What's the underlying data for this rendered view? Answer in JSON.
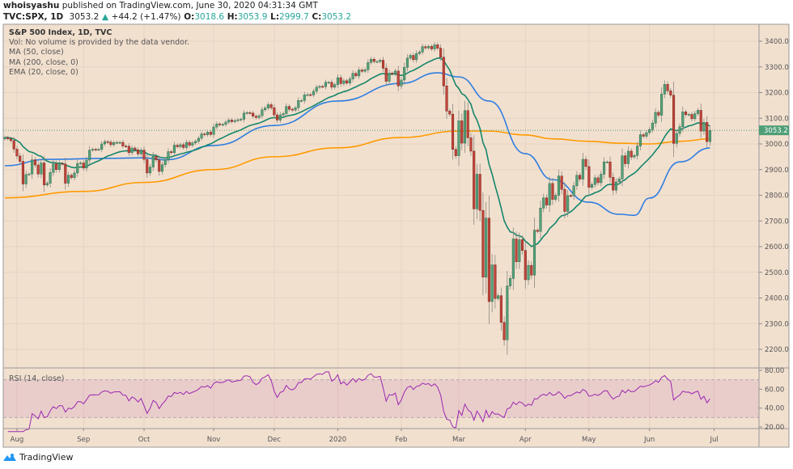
{
  "header": {
    "author": "whoisyashu",
    "published": "published on TradingView.com, June 30, 2020 04:31:34 GMT",
    "symbol": "TVC:SPX, 1D",
    "last": "3053.2",
    "change_icon": "triangle-up-icon",
    "change": "+44.2 (+1.47%)",
    "o_label": "O:",
    "o": "3018.6",
    "h_label": "H:",
    "h": "3053.9",
    "l_label": "L:",
    "l": "2999.7",
    "c_label": "C:",
    "c": "3053.2"
  },
  "legend": {
    "title": "S&P 500 Index, 1D, TVC",
    "vol": "Vol: No volume is provided by the data vendor.",
    "ma50": "MA (50, close)",
    "ma200": "MA (200, close, 0)",
    "ema20": "EMA (20, close, 0)"
  },
  "rsi_label": "RSI (14, close)",
  "brand": "TradingView",
  "colors": {
    "background": "#f2e0cf",
    "up": "#55a07a",
    "down": "#c0453a",
    "ema20": "#14866b",
    "ma50": "#2f7ee0",
    "ma200": "#ff9a00",
    "rsi": "#9b27b0",
    "last_price": "#4f9e76"
  },
  "chart_data": {
    "type": "candlestick",
    "last_price_label": "3053.2",
    "price_ticks": [
      "3400.0",
      "3300.0",
      "3200.0",
      "3100.0",
      "3000.0",
      "2900.0",
      "2800.0",
      "2700.0",
      "2600.0",
      "2500.0",
      "2400.0",
      "2300.0",
      "2200.0"
    ],
    "price_range": [
      2155,
      3465
    ],
    "rsi_ticks": [
      "80.00",
      "60.00",
      "40.00",
      "20.00"
    ],
    "rsi_band": [
      30,
      70
    ],
    "time_ticks": [
      {
        "label": "Aug",
        "date": "2019-08-01"
      },
      {
        "label": "Sep",
        "date": "2019-09-03"
      },
      {
        "label": "Oct",
        "date": "2019-10-01"
      },
      {
        "label": "Nov",
        "date": "2019-11-01"
      },
      {
        "label": "Dec",
        "date": "2019-12-02"
      },
      {
        "label": "2020",
        "date": "2020-01-02"
      },
      {
        "label": "Feb",
        "date": "2020-02-03"
      },
      {
        "label": "Mar",
        "date": "2020-03-02"
      },
      {
        "label": "Apr",
        "date": "2020-04-01"
      },
      {
        "label": "May",
        "date": "2020-05-01"
      },
      {
        "label": "Jun",
        "date": "2020-06-01"
      },
      {
        "label": "Jul",
        "date": "2020-07-01"
      }
    ],
    "candles_close": [
      [
        "2019-07-26",
        3025
      ],
      [
        "2019-07-29",
        3020
      ],
      [
        "2019-07-30",
        3013
      ],
      [
        "2019-07-31",
        2980
      ],
      [
        "2019-08-01",
        2953
      ],
      [
        "2019-08-02",
        2932
      ],
      [
        "2019-08-05",
        2844
      ],
      [
        "2019-08-06",
        2881
      ],
      [
        "2019-08-07",
        2883
      ],
      [
        "2019-08-08",
        2938
      ],
      [
        "2019-08-09",
        2918
      ],
      [
        "2019-08-12",
        2883
      ],
      [
        "2019-08-13",
        2926
      ],
      [
        "2019-08-14",
        2840
      ],
      [
        "2019-08-15",
        2847
      ],
      [
        "2019-08-16",
        2889
      ],
      [
        "2019-08-19",
        2923
      ],
      [
        "2019-08-20",
        2900
      ],
      [
        "2019-08-21",
        2924
      ],
      [
        "2019-08-22",
        2922
      ],
      [
        "2019-08-23",
        2847
      ],
      [
        "2019-08-26",
        2878
      ],
      [
        "2019-08-27",
        2869
      ],
      [
        "2019-08-28",
        2887
      ],
      [
        "2019-08-29",
        2924
      ],
      [
        "2019-08-30",
        2926
      ],
      [
        "2019-09-03",
        2906
      ],
      [
        "2019-09-04",
        2937
      ],
      [
        "2019-09-05",
        2976
      ],
      [
        "2019-09-06",
        2979
      ],
      [
        "2019-09-09",
        2978
      ],
      [
        "2019-09-10",
        2979
      ],
      [
        "2019-09-11",
        3000
      ],
      [
        "2019-09-12",
        3009
      ],
      [
        "2019-09-13",
        3007
      ],
      [
        "2019-09-16",
        2997
      ],
      [
        "2019-09-17",
        3005
      ],
      [
        "2019-09-18",
        3006
      ],
      [
        "2019-09-19",
        3006
      ],
      [
        "2019-09-20",
        2992
      ],
      [
        "2019-09-23",
        2991
      ],
      [
        "2019-09-24",
        2966
      ],
      [
        "2019-09-25",
        2984
      ],
      [
        "2019-09-26",
        2977
      ],
      [
        "2019-09-27",
        2961
      ],
      [
        "2019-09-30",
        2976
      ],
      [
        "2019-10-01",
        2940
      ],
      [
        "2019-10-02",
        2887
      ],
      [
        "2019-10-03",
        2910
      ],
      [
        "2019-10-04",
        2952
      ],
      [
        "2019-10-07",
        2938
      ],
      [
        "2019-10-08",
        2893
      ],
      [
        "2019-10-09",
        2919
      ],
      [
        "2019-10-10",
        2938
      ],
      [
        "2019-10-11",
        2970
      ],
      [
        "2019-10-14",
        2966
      ],
      [
        "2019-10-15",
        2995
      ],
      [
        "2019-10-16",
        2989
      ],
      [
        "2019-10-17",
        2997
      ],
      [
        "2019-10-18",
        2986
      ],
      [
        "2019-10-21",
        3006
      ],
      [
        "2019-10-22",
        2995
      ],
      [
        "2019-10-23",
        3004
      ],
      [
        "2019-10-24",
        3010
      ],
      [
        "2019-10-25",
        3022
      ],
      [
        "2019-10-28",
        3039
      ],
      [
        "2019-10-29",
        3036
      ],
      [
        "2019-10-30",
        3046
      ],
      [
        "2019-10-31",
        3037
      ],
      [
        "2019-11-01",
        3066
      ],
      [
        "2019-11-04",
        3078
      ],
      [
        "2019-11-05",
        3075
      ],
      [
        "2019-11-06",
        3076
      ],
      [
        "2019-11-07",
        3085
      ],
      [
        "2019-11-08",
        3093
      ],
      [
        "2019-11-11",
        3087
      ],
      [
        "2019-11-12",
        3091
      ],
      [
        "2019-11-13",
        3094
      ],
      [
        "2019-11-14",
        3096
      ],
      [
        "2019-11-15",
        3120
      ],
      [
        "2019-11-18",
        3122
      ],
      [
        "2019-11-19",
        3120
      ],
      [
        "2019-11-20",
        3108
      ],
      [
        "2019-11-21",
        3103
      ],
      [
        "2019-11-22",
        3110
      ],
      [
        "2019-11-25",
        3133
      ],
      [
        "2019-11-26",
        3140
      ],
      [
        "2019-11-27",
        3153
      ],
      [
        "2019-11-29",
        3141
      ],
      [
        "2019-12-02",
        3113
      ],
      [
        "2019-12-03",
        3093
      ],
      [
        "2019-12-04",
        3113
      ],
      [
        "2019-12-05",
        3118
      ],
      [
        "2019-12-06",
        3146
      ],
      [
        "2019-12-09",
        3135
      ],
      [
        "2019-12-10",
        3132
      ],
      [
        "2019-12-11",
        3141
      ],
      [
        "2019-12-12",
        3169
      ],
      [
        "2019-12-13",
        3169
      ],
      [
        "2019-12-16",
        3191
      ],
      [
        "2019-12-17",
        3192
      ],
      [
        "2019-12-18",
        3191
      ],
      [
        "2019-12-19",
        3205
      ],
      [
        "2019-12-20",
        3221
      ],
      [
        "2019-12-23",
        3224
      ],
      [
        "2019-12-24",
        3223
      ],
      [
        "2019-12-26",
        3240
      ],
      [
        "2019-12-27",
        3240
      ],
      [
        "2019-12-30",
        3221
      ],
      [
        "2019-12-31",
        3231
      ],
      [
        "2020-01-02",
        3258
      ],
      [
        "2020-01-03",
        3235
      ],
      [
        "2020-01-06",
        3246
      ],
      [
        "2020-01-07",
        3237
      ],
      [
        "2020-01-08",
        3253
      ],
      [
        "2020-01-09",
        3275
      ],
      [
        "2020-01-10",
        3265
      ],
      [
        "2020-01-13",
        3288
      ],
      [
        "2020-01-14",
        3283
      ],
      [
        "2020-01-15",
        3289
      ],
      [
        "2020-01-16",
        3317
      ],
      [
        "2020-01-17",
        3330
      ],
      [
        "2020-01-21",
        3321
      ],
      [
        "2020-01-22",
        3321
      ],
      [
        "2020-01-23",
        3326
      ],
      [
        "2020-01-24",
        3295
      ],
      [
        "2020-01-27",
        3244
      ],
      [
        "2020-01-28",
        3276
      ],
      [
        "2020-01-29",
        3273
      ],
      [
        "2020-01-30",
        3284
      ],
      [
        "2020-01-31",
        3226
      ],
      [
        "2020-02-03",
        3249
      ],
      [
        "2020-02-04",
        3298
      ],
      [
        "2020-02-05",
        3334
      ],
      [
        "2020-02-06",
        3345
      ],
      [
        "2020-02-07",
        3328
      ],
      [
        "2020-02-10",
        3352
      ],
      [
        "2020-02-11",
        3358
      ],
      [
        "2020-02-12",
        3379
      ],
      [
        "2020-02-13",
        3374
      ],
      [
        "2020-02-14",
        3380
      ],
      [
        "2020-02-18",
        3370
      ],
      [
        "2020-02-19",
        3386
      ],
      [
        "2020-02-20",
        3373
      ],
      [
        "2020-02-21",
        3338
      ],
      [
        "2020-02-24",
        3226
      ],
      [
        "2020-02-25",
        3128
      ],
      [
        "2020-02-26",
        3116
      ],
      [
        "2020-02-27",
        2979
      ],
      [
        "2020-02-28",
        2954
      ],
      [
        "2020-03-02",
        3090
      ],
      [
        "2020-03-03",
        3003
      ],
      [
        "2020-03-04",
        3130
      ],
      [
        "2020-03-05",
        3024
      ],
      [
        "2020-03-06",
        2972
      ],
      [
        "2020-03-09",
        2747
      ],
      [
        "2020-03-10",
        2882
      ],
      [
        "2020-03-11",
        2741
      ],
      [
        "2020-03-12",
        2481
      ],
      [
        "2020-03-13",
        2711
      ],
      [
        "2020-03-16",
        2386
      ],
      [
        "2020-03-17",
        2529
      ],
      [
        "2020-03-18",
        2398
      ],
      [
        "2020-03-19",
        2409
      ],
      [
        "2020-03-20",
        2305
      ],
      [
        "2020-03-23",
        2237
      ],
      [
        "2020-03-24",
        2447
      ],
      [
        "2020-03-25",
        2476
      ],
      [
        "2020-03-26",
        2630
      ],
      [
        "2020-03-27",
        2541
      ],
      [
        "2020-03-30",
        2627
      ],
      [
        "2020-03-31",
        2585
      ],
      [
        "2020-04-01",
        2471
      ],
      [
        "2020-04-02",
        2527
      ],
      [
        "2020-04-03",
        2489
      ],
      [
        "2020-04-06",
        2664
      ],
      [
        "2020-04-07",
        2659
      ],
      [
        "2020-04-08",
        2750
      ],
      [
        "2020-04-09",
        2790
      ],
      [
        "2020-04-13",
        2762
      ],
      [
        "2020-04-14",
        2846
      ],
      [
        "2020-04-15",
        2784
      ],
      [
        "2020-04-16",
        2800
      ],
      [
        "2020-04-17",
        2875
      ],
      [
        "2020-04-20",
        2823
      ],
      [
        "2020-04-21",
        2737
      ],
      [
        "2020-04-22",
        2799
      ],
      [
        "2020-04-23",
        2798
      ],
      [
        "2020-04-24",
        2837
      ],
      [
        "2020-04-27",
        2878
      ],
      [
        "2020-04-28",
        2863
      ],
      [
        "2020-04-29",
        2940
      ],
      [
        "2020-04-30",
        2912
      ],
      [
        "2020-05-01",
        2831
      ],
      [
        "2020-05-04",
        2842
      ],
      [
        "2020-05-05",
        2868
      ],
      [
        "2020-05-06",
        2849
      ],
      [
        "2020-05-07",
        2882
      ],
      [
        "2020-05-08",
        2930
      ],
      [
        "2020-05-11",
        2930
      ],
      [
        "2020-05-12",
        2870
      ],
      [
        "2020-05-13",
        2820
      ],
      [
        "2020-05-14",
        2852
      ],
      [
        "2020-05-15",
        2864
      ],
      [
        "2020-05-18",
        2954
      ],
      [
        "2020-05-19",
        2923
      ],
      [
        "2020-05-20",
        2972
      ],
      [
        "2020-05-21",
        2949
      ],
      [
        "2020-05-22",
        2955
      ],
      [
        "2020-05-26",
        2992
      ],
      [
        "2020-05-27",
        3036
      ],
      [
        "2020-05-28",
        3030
      ],
      [
        "2020-05-29",
        3044
      ],
      [
        "2020-06-01",
        3056
      ],
      [
        "2020-06-02",
        3081
      ],
      [
        "2020-06-03",
        3123
      ],
      [
        "2020-06-04",
        3112
      ],
      [
        "2020-06-05",
        3194
      ],
      [
        "2020-06-08",
        3232
      ],
      [
        "2020-06-09",
        3207
      ],
      [
        "2020-06-10",
        3190
      ],
      [
        "2020-06-11",
        3002
      ],
      [
        "2020-06-12",
        3041
      ],
      [
        "2020-06-15",
        3067
      ],
      [
        "2020-06-16",
        3125
      ],
      [
        "2020-06-17",
        3114
      ],
      [
        "2020-06-18",
        3115
      ],
      [
        "2020-06-19",
        3098
      ],
      [
        "2020-06-22",
        3118
      ],
      [
        "2020-06-23",
        3131
      ],
      [
        "2020-06-24",
        3050
      ],
      [
        "2020-06-25",
        3084
      ],
      [
        "2020-06-26",
        3009
      ],
      [
        "2020-06-29",
        3053
      ]
    ],
    "ma50": [
      [
        "2019-07-26",
        2915
      ],
      [
        "2019-08-15",
        2940
      ],
      [
        "2019-09-16",
        2944
      ],
      [
        "2019-10-01",
        2946
      ],
      [
        "2019-10-10",
        2938
      ],
      [
        "2019-11-01",
        2994
      ],
      [
        "2019-12-02",
        3072
      ],
      [
        "2020-01-02",
        3167
      ],
      [
        "2020-02-03",
        3236
      ],
      [
        "2020-02-20",
        3277
      ],
      [
        "2020-03-02",
        3261
      ],
      [
        "2020-03-16",
        3167
      ],
      [
        "2020-04-01",
        2962
      ],
      [
        "2020-04-15",
        2861
      ],
      [
        "2020-05-01",
        2773
      ],
      [
        "2020-05-15",
        2726
      ],
      [
        "2020-05-22",
        2722
      ],
      [
        "2020-06-01",
        2789
      ],
      [
        "2020-06-15",
        2930
      ],
      [
        "2020-06-29",
        2984
      ]
    ],
    "ma200": [
      [
        "2019-07-26",
        2790
      ],
      [
        "2019-09-03",
        2815
      ],
      [
        "2019-10-01",
        2850
      ],
      [
        "2019-11-01",
        2900
      ],
      [
        "2019-12-02",
        2950
      ],
      [
        "2020-01-02",
        2985
      ],
      [
        "2020-02-03",
        3025
      ],
      [
        "2020-03-02",
        3050
      ],
      [
        "2020-03-16",
        3050
      ],
      [
        "2020-04-01",
        3035
      ],
      [
        "2020-04-15",
        3020
      ],
      [
        "2020-05-01",
        3010
      ],
      [
        "2020-05-15",
        3003
      ],
      [
        "2020-06-01",
        3000
      ],
      [
        "2020-06-15",
        3010
      ],
      [
        "2020-06-29",
        3020
      ]
    ]
  }
}
